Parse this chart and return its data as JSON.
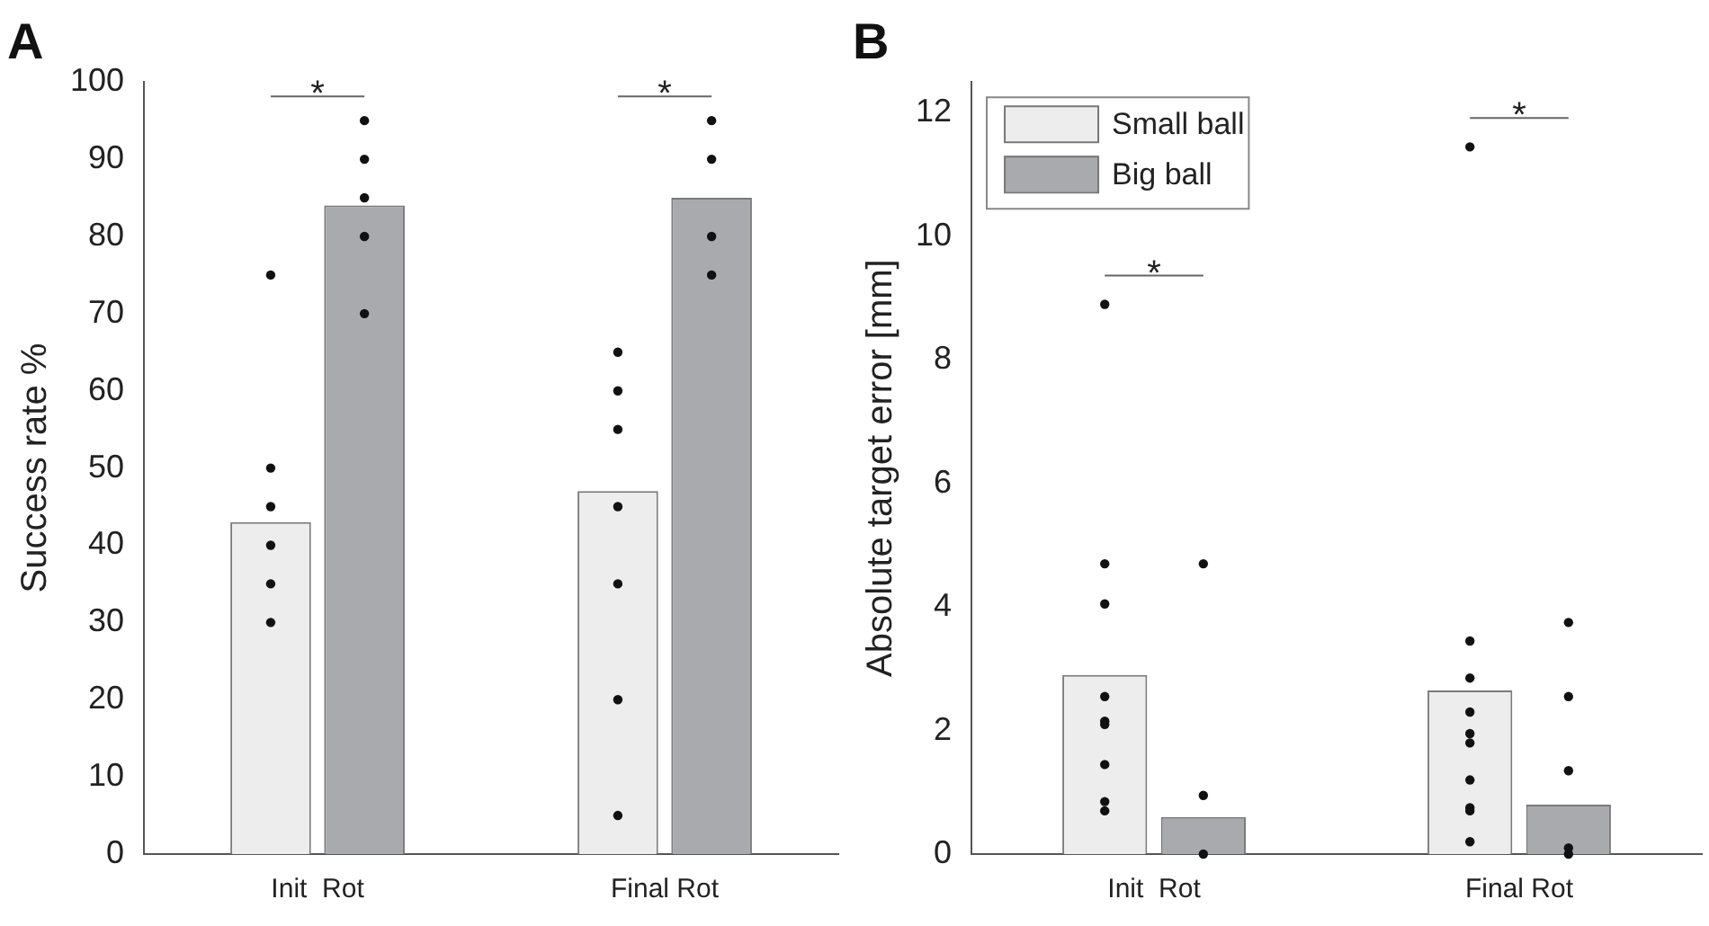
{
  "chart_data": [
    {
      "type": "bar",
      "title": "A",
      "ylabel": "Success rate %",
      "categories": [
        "Init  Rot",
        "Final Rot"
      ],
      "ylim": [
        0,
        100
      ],
      "yticks": [
        0,
        10,
        20,
        30,
        40,
        50,
        60,
        70,
        80,
        90,
        100
      ],
      "grid": false,
      "legend": false,
      "series": [
        {
          "color": "#ededed",
          "values": [
            43,
            47
          ]
        },
        {
          "color": "#a9aaad",
          "values": [
            84,
            85
          ]
        },
        {
          "type": "scatter",
          "color": "#111111",
          "x": [
            "Init  Rot",
            "Init  Rot",
            "Init  Rot",
            "Init  Rot",
            "Init  Rot",
            "Init  Rot",
            "Final Rot",
            "Final Rot",
            "Final Rot",
            "Final Rot",
            "Final Rot",
            "Final Rot",
            "Final Rot"
          ],
          "values": [
            75,
            50,
            45,
            40,
            35,
            30,
            65,
            60,
            55,
            45,
            35,
            20,
            5
          ]
        },
        {
          "type": "scatter",
          "color": "#111111",
          "x": [
            "Init  Rot",
            "Init  Rot",
            "Init  Rot",
            "Init  Rot",
            "Init  Rot",
            "Final Rot",
            "Final Rot",
            "Final Rot",
            "Final Rot"
          ],
          "values": [
            95,
            90,
            85,
            80,
            70,
            95,
            90,
            80,
            75
          ]
        }
      ],
      "annotations": [
        "*",
        "*"
      ]
    },
    {
      "type": "bar",
      "title": "B",
      "ylabel": "Absolute target error [mm]",
      "categories": [
        "Init  Rot",
        "Final Rot"
      ],
      "ylim": [
        0,
        12.5
      ],
      "yticks": [
        0,
        2,
        4,
        6,
        8,
        10,
        12
      ],
      "grid": false,
      "legend": "top left",
      "series": [
        {
          "name": "Small ball",
          "color": "#ededed",
          "values": [
            2.9,
            2.65
          ]
        },
        {
          "name": "Big ball",
          "color": "#a9aaad",
          "values": [
            0.6,
            0.8
          ]
        },
        {
          "type": "scatter",
          "color": "#111111",
          "x": [
            "Init  Rot",
            "Init  Rot",
            "Init  Rot",
            "Init  Rot",
            "Init  Rot",
            "Init  Rot",
            "Init  Rot",
            "Init  Rot",
            "Init  Rot",
            "Final Rot",
            "Final Rot",
            "Final Rot",
            "Final Rot",
            "Final Rot",
            "Final Rot",
            "Final Rot",
            "Final Rot",
            "Final Rot",
            "Final Rot"
          ],
          "values": [
            8.9,
            4.7,
            4.05,
            2.55,
            2.15,
            2.1,
            1.45,
            0.85,
            0.7,
            11.45,
            3.45,
            2.85,
            2.3,
            1.95,
            1.8,
            1.2,
            0.75,
            0.7,
            0.2
          ]
        },
        {
          "type": "scatter",
          "color": "#111111",
          "x": [
            "Init  Rot",
            "Init  Rot",
            "Init  Rot",
            "Final Rot",
            "Final Rot",
            "Final Rot",
            "Final Rot",
            "Final Rot"
          ],
          "values": [
            4.7,
            0.95,
            0,
            3.75,
            2.55,
            1.35,
            0.1,
            0
          ]
        }
      ],
      "annotations": [
        "*",
        "*"
      ]
    }
  ]
}
